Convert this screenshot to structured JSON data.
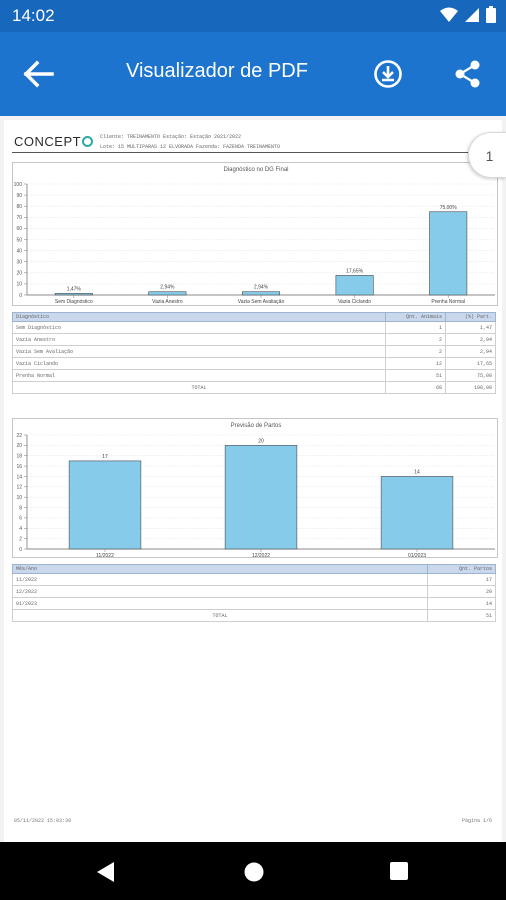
{
  "status_bar": {
    "time": "14:02"
  },
  "app_bar": {
    "title": "Visualizador de PDF"
  },
  "viewer": {
    "page_indicator": "1",
    "doc_header": {
      "logo_text": "CONCEPT",
      "line1": "Cliente: TREINAMENTO     Estação: Estação 2021/2022",
      "line2": "Lote: 15 MULTIPARAS 12 ELVORADA     Fazenda: FAZENDA TREINAMENTO"
    },
    "chart1": {
      "chart_data": {
        "type": "bar",
        "title": "Diagnóstico no DG Final",
        "categories": [
          "Sem Diagnóstico",
          "Vazia Anestro",
          "Vazia Sem Avaliação",
          "Vazia Ciclando",
          "Prenha Normal"
        ],
        "values": [
          1.47,
          2.94,
          2.94,
          17.65,
          75.0
        ],
        "data_labels": [
          "1,47%",
          "2,94%",
          "2,94%",
          "17,65%",
          "75,00%"
        ],
        "ylim": [
          0,
          100
        ],
        "yticks": [
          "0",
          "10",
          "20",
          "30",
          "40",
          "50",
          "60",
          "70",
          "80",
          "90",
          "100"
        ],
        "bar_color": "#87cbeb",
        "grid": true
      }
    },
    "table1": {
      "headers": [
        "Diagnóstico",
        "Qnt. Animais",
        "(%) Part."
      ],
      "rows": [
        [
          "Sem Diagnóstico",
          "1",
          "1,47"
        ],
        [
          "Vazia Anestro",
          "2",
          "2,94"
        ],
        [
          "Vazia Sem Avaliação",
          "2",
          "2,94"
        ],
        [
          "Vazia Ciclando",
          "12",
          "17,65"
        ],
        [
          "Prenha Normal",
          "51",
          "75,00"
        ]
      ],
      "total": [
        "TOTAL",
        "68",
        "100,00"
      ]
    },
    "chart2": {
      "chart_data": {
        "type": "bar",
        "title": "Previsão de Partos",
        "categories": [
          "11/2022",
          "12/2022",
          "01/2023"
        ],
        "values": [
          17,
          20,
          14
        ],
        "data_labels": [
          "17",
          "20",
          "14"
        ],
        "ylim": [
          0,
          22
        ],
        "yticks": [
          "0",
          "2",
          "4",
          "6",
          "8",
          "10",
          "12",
          "14",
          "16",
          "18",
          "20",
          "22"
        ],
        "bar_color": "#87cbeb",
        "grid": true
      }
    },
    "table2": {
      "headers": [
        "Mês/Ano",
        "Qnt. Partos"
      ],
      "rows": [
        [
          "11/2022",
          "17"
        ],
        [
          "12/2022",
          "20"
        ],
        [
          "01/2023",
          "14"
        ]
      ],
      "total": [
        "TOTAL",
        "51"
      ]
    },
    "footer": {
      "timestamp": "05/11/2022 15:03:39",
      "page": "Página 1/6"
    }
  }
}
